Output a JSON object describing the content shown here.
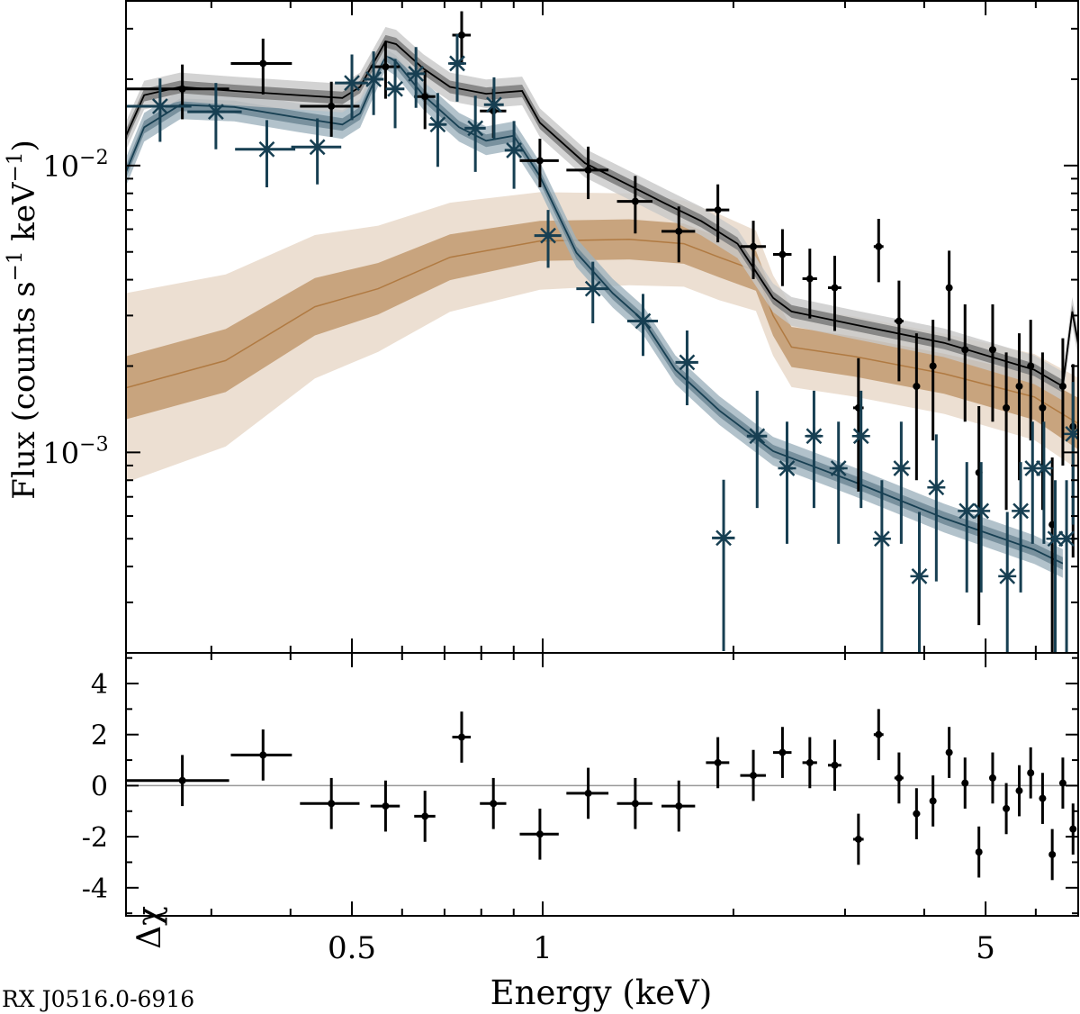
{
  "chart_data": [
    {
      "type": "scatter",
      "panel": "spectrum",
      "ylabel": "Flux (counts s^{-1} keV^{-1})",
      "ylabel_parts": {
        "pre": "Flux (counts s",
        "exp1": "−1",
        "mid": " keV",
        "exp2": "−1",
        "post": ")"
      },
      "xscale": "log",
      "yscale": "log",
      "xlim": [
        0.22,
        7.0
      ],
      "ylim": [
        0.0002,
        0.0375
      ],
      "x_ticks": [
        {
          "value": 0.5,
          "label": "0.5"
        },
        {
          "value": 1,
          "label": "1"
        },
        {
          "value": 5,
          "label": "5"
        }
      ],
      "y_ticks": [
        {
          "value": 0.01,
          "base": "10",
          "exp": "−2"
        },
        {
          "value": 0.001,
          "base": "10",
          "exp": "−3"
        }
      ],
      "grid": false,
      "colors": {
        "black": "#000000",
        "blue": "#173f52",
        "tan_line": "#b07a42",
        "tan_dark": "#c29a70",
        "tan_light": "#ecdfd2"
      },
      "series": [
        {
          "marker": "dot",
          "color": "black",
          "points": [
            [
              0.27,
              0.0185,
              0.05,
              0.004
            ],
            [
              0.362,
              0.0227,
              0.04,
              0.005
            ],
            [
              0.464,
              0.0161,
              0.05,
              0.0035
            ],
            [
              0.565,
              0.0221,
              0.03,
              0.005
            ],
            [
              0.652,
              0.0174,
              0.025,
              0.004
            ],
            [
              0.745,
              0.0285,
              0.025,
              0.006
            ],
            [
              0.836,
              0.0155,
              0.04,
              0.003
            ],
            [
              0.99,
              0.0104,
              0.07,
              0.002
            ],
            [
              1.18,
              0.00964,
              0.09,
              0.002
            ],
            [
              1.4,
              0.0075,
              0.09,
              0.0017
            ],
            [
              1.64,
              0.0059,
              0.1,
              0.0013
            ],
            [
              1.89,
              0.007,
              0.08,
              0.0016
            ],
            [
              2.15,
              0.00522,
              0.1,
              0.0012
            ],
            [
              2.39,
              0.0049,
              0.08,
              0.0011
            ],
            [
              2.64,
              0.00403,
              0.07,
              0.0011
            ],
            [
              2.89,
              0.00375,
              0.07,
              0.0011
            ],
            [
              3.15,
              0.00143,
              0.06,
              0.0007
            ],
            [
              3.39,
              0.00522,
              0.06,
              0.0013
            ],
            [
              3.65,
              0.00287,
              0.06,
              0.0011
            ],
            [
              3.89,
              0.0017,
              0.05,
              0.0009
            ],
            [
              4.13,
              0.002,
              0.05,
              0.0009
            ],
            [
              4.38,
              0.00375,
              0.05,
              0.0013
            ],
            [
              4.64,
              0.00228,
              0.05,
              0.001
            ],
            [
              4.88,
              0.00085,
              0.04,
              0.0006
            ],
            [
              5.13,
              0.00228,
              0.05,
              0.001
            ],
            [
              5.39,
              0.00143,
              0.04,
              0.0008
            ],
            [
              5.65,
              0.0017,
              0.04,
              0.0009
            ],
            [
              5.89,
              0.002,
              0.04,
              0.0009
            ],
            [
              6.15,
              0.00143,
              0.04,
              0.0008
            ],
            [
              6.37,
              0.00056,
              0.03,
              0.0004
            ],
            [
              6.62,
              0.0017,
              0.04,
              0.0008
            ],
            [
              6.87,
              0.00123,
              0.04,
              0.0008
            ]
          ],
          "model": [
            [
              0.22,
              0.0127
            ],
            [
              0.235,
              0.0176
            ],
            [
              0.268,
              0.0188
            ],
            [
              0.326,
              0.0182
            ],
            [
              0.41,
              0.0176
            ],
            [
              0.483,
              0.0172
            ],
            [
              0.515,
              0.0188
            ],
            [
              0.565,
              0.0271
            ],
            [
              0.587,
              0.0265
            ],
            [
              0.648,
              0.0218
            ],
            [
              0.714,
              0.0188
            ],
            [
              0.814,
              0.0178
            ],
            [
              0.928,
              0.0182
            ],
            [
              0.99,
              0.0141
            ],
            [
              1.166,
              0.0102
            ],
            [
              1.37,
              0.00853
            ],
            [
              1.56,
              0.00738
            ],
            [
              1.78,
              0.0064
            ],
            [
              2.03,
              0.00534
            ],
            [
              2.31,
              0.00346
            ],
            [
              2.47,
              0.0031
            ],
            [
              3.1,
              0.00279
            ],
            [
              4.3,
              0.00241
            ],
            [
              5.97,
              0.00194
            ],
            [
              6.62,
              0.0017
            ],
            [
              6.85,
              0.0031
            ],
            [
              7.0,
              0.0024
            ]
          ]
        },
        {
          "marker": "asterisk",
          "color": "blue",
          "points": [
            [
              0.249,
              0.0161,
              0.03,
              0.004
            ],
            [
              0.305,
              0.0154,
              0.03,
              0.004
            ],
            [
              0.367,
              0.0114,
              0.04,
              0.003
            ],
            [
              0.441,
              0.0116,
              0.04,
              0.003
            ],
            [
              0.5,
              0.0194,
              0.03,
              0.005
            ],
            [
              0.541,
              0.02,
              0.02,
              0.005
            ],
            [
              0.585,
              0.0185,
              0.02,
              0.005
            ],
            [
              0.631,
              0.0209,
              0.02,
              0.005
            ],
            [
              0.683,
              0.0139,
              0.02,
              0.004
            ],
            [
              0.733,
              0.0227,
              0.02,
              0.006
            ],
            [
              0.783,
              0.0135,
              0.03,
              0.004
            ],
            [
              0.838,
              0.0163,
              0.03,
              0.004
            ],
            [
              0.901,
              0.0113,
              0.03,
              0.003
            ],
            [
              1.02,
              0.0057,
              0.05,
              0.0013
            ],
            [
              1.2,
              0.00372,
              0.07,
              0.0009
            ],
            [
              1.44,
              0.00287,
              0.08,
              0.0007
            ],
            [
              1.69,
              0.00206,
              0.07,
              0.0006
            ],
            [
              1.93,
              0.000503,
              0.08,
              0.0003
            ],
            [
              2.18,
              0.00114,
              0.08,
              0.0005
            ],
            [
              2.43,
              0.00088,
              0.05,
              0.0004
            ],
            [
              2.68,
              0.00114,
              0.07,
              0.0005
            ],
            [
              2.93,
              0.00088,
              0.06,
              0.0004
            ],
            [
              3.18,
              0.00114,
              0.06,
              0.0005
            ],
            [
              3.43,
              0.0005,
              0.06,
              0.0003
            ],
            [
              3.68,
              0.00088,
              0.06,
              0.0004
            ],
            [
              3.93,
              0.00037,
              0.05,
              0.00025
            ],
            [
              4.18,
              0.000755,
              0.05,
              0.0004
            ],
            [
              4.67,
              0.000625,
              0.05,
              0.0003
            ],
            [
              4.92,
              0.000625,
              0.05,
              0.0003
            ],
            [
              5.41,
              0.00037,
              0.05,
              0.00025
            ],
            [
              5.68,
              0.000625,
              0.04,
              0.0003
            ],
            [
              5.93,
              0.00088,
              0.04,
              0.0004
            ],
            [
              6.18,
              0.00088,
              0.04,
              0.0004
            ],
            [
              6.44,
              0.0005,
              0.04,
              0.0003
            ],
            [
              6.71,
              0.0005,
              0.04,
              0.0003
            ],
            [
              6.87,
              0.00116,
              0.04,
              0.0006
            ]
          ],
          "model": [
            [
              0.22,
              0.0095
            ],
            [
              0.235,
              0.0136
            ],
            [
              0.268,
              0.0163
            ],
            [
              0.326,
              0.016
            ],
            [
              0.41,
              0.0147
            ],
            [
              0.483,
              0.0139
            ],
            [
              0.515,
              0.0152
            ],
            [
              0.565,
              0.0243
            ],
            [
              0.587,
              0.023
            ],
            [
              0.648,
              0.0176
            ],
            [
              0.738,
              0.0136
            ],
            [
              0.814,
              0.0122
            ],
            [
              0.9,
              0.0127
            ],
            [
              0.99,
              0.00917
            ],
            [
              1.13,
              0.00497
            ],
            [
              1.29,
              0.00359
            ],
            [
              1.44,
              0.00289
            ],
            [
              1.62,
              0.00194
            ],
            [
              1.9,
              0.0014
            ],
            [
              2.31,
              0.00101
            ],
            [
              3.1,
              0.00079
            ],
            [
              4.3,
              0.00059
            ],
            [
              5.97,
              0.000458
            ],
            [
              6.62,
              0.00041
            ]
          ]
        },
        {
          "marker": "none",
          "color": "tan_line",
          "model": [
            [
              0.22,
              0.00168
            ],
            [
              0.316,
              0.00209
            ],
            [
              0.437,
              0.00322
            ],
            [
              0.55,
              0.00372
            ],
            [
              0.714,
              0.00479
            ],
            [
              0.99,
              0.00546
            ],
            [
              1.37,
              0.00553
            ],
            [
              1.67,
              0.00534
            ],
            [
              1.9,
              0.00479
            ],
            [
              2.17,
              0.0043
            ],
            [
              2.31,
              0.003
            ],
            [
              2.47,
              0.00233
            ],
            [
              3.1,
              0.00216
            ],
            [
              4.3,
              0.00188
            ],
            [
              5.97,
              0.00156
            ],
            [
              7.0,
              0.00126
            ]
          ],
          "band_dark_dex": [
            0.11,
            0.11,
            0.1,
            0.09,
            0.08,
            0.07,
            0.07,
            0.07,
            0.07,
            0.07,
            0.07,
            0.07,
            0.07,
            0.07,
            0.08,
            0.09
          ],
          "band_light_dex": [
            0.33,
            0.3,
            0.25,
            0.22,
            0.19,
            0.17,
            0.16,
            0.15,
            0.15,
            0.14,
            0.14,
            0.14,
            0.14,
            0.14,
            0.15,
            0.16
          ]
        }
      ]
    },
    {
      "type": "scatter",
      "panel": "residuals",
      "xlabel": "Energy (keV)",
      "ylabel": "Δχ",
      "xscale": "log",
      "xlim": [
        0.22,
        7.0
      ],
      "ylim": [
        -5.1,
        5.2
      ],
      "y_ticks": [
        {
          "value": 4,
          "label": "4"
        },
        {
          "value": 2,
          "label": "2"
        },
        {
          "value": 0,
          "label": "0"
        },
        {
          "value": -2,
          "label": "-2"
        },
        {
          "value": -4,
          "label": "-4"
        }
      ],
      "zero_line": true,
      "values": [
        0.2,
        1.2,
        -0.7,
        -0.8,
        -1.2,
        1.9,
        -0.7,
        -1.9,
        -0.3,
        -0.7,
        -0.8,
        0.9,
        0.4,
        1.3,
        0.9,
        0.8,
        -2.1,
        2.0,
        0.3,
        -1.1,
        -0.6,
        1.3,
        0.1,
        -2.6,
        0.3,
        -0.9,
        -0.2,
        0.5,
        -0.5,
        -2.7,
        0.1,
        -1.7
      ],
      "y_err": 1.0
    }
  ],
  "source_label": "RX J0516.0-6916"
}
